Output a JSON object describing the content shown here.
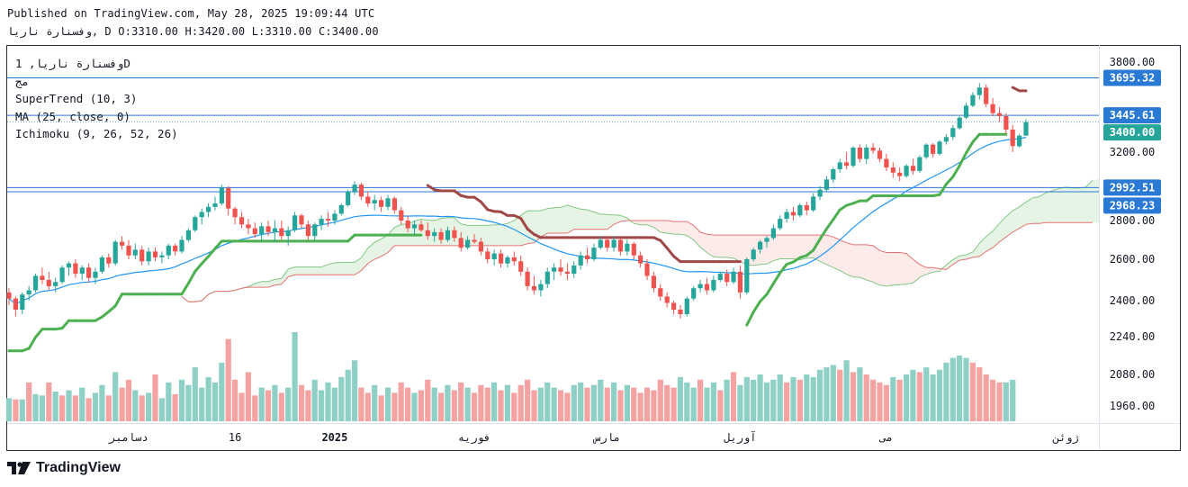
{
  "header": {
    "published": "Published on TradingView.com, May 28, 2025 19:09:44 UTC",
    "ohlc": "وفسنارة ناريا, D O:3310.00 H:3420.00 L:3310.00 C:3400.00"
  },
  "legend": {
    "symbol_line": "وفسنارة ناريا, 1D",
    "sub_line": "مج",
    "indicator_supertrend": "SuperTrend (10, 3)",
    "indicator_ma": "MA (25, close, 0)",
    "indicator_ichimoku": "Ichimoku (9, 26, 52, 26)"
  },
  "brand": {
    "name": "TradingView"
  },
  "colors": {
    "up": "#26a69a",
    "down": "#ef5350",
    "vol_up": "#8fd0c6",
    "vol_down": "#f4a3a2",
    "supertrend_up": "#4caf50",
    "supertrend_down": "#a04848",
    "ma": "#2196f3",
    "cloud_bull": "#a5d6a7",
    "cloud_bear": "#f7b6b4",
    "hline": "#2a7ad5"
  },
  "chart_data": {
    "type": "candlestick",
    "title": "",
    "ylim": [
      1900,
      3860
    ],
    "y_ticks": [
      3800,
      3600,
      3400,
      3200,
      3000,
      2800,
      2600,
      2400,
      2240,
      2080,
      1960
    ],
    "y_tick_labels": [
      "3800.00",
      "3200.00",
      "2800.00",
      "2600.00",
      "2400.00",
      "2240.00",
      "2080.00",
      "1960.00"
    ],
    "x_labels": [
      "دسامبر",
      "16",
      "2025",
      "فوریه",
      "مارس",
      "آوریل",
      "می",
      "ژوئن"
    ],
    "x_label_index": [
      18,
      34,
      49,
      70,
      90,
      110,
      132,
      159
    ],
    "price_tags": [
      {
        "value": 3695.32,
        "label": "3695.32",
        "style": "line"
      },
      {
        "value": 3445.61,
        "label": "3445.61",
        "style": "line"
      },
      {
        "value": 3400.0,
        "label": "3400.00",
        "style": "current"
      },
      {
        "value": 2992.51,
        "label": "2992.51",
        "style": "line"
      },
      {
        "value": 2968.23,
        "label": "2968.23",
        "style": "line"
      }
    ],
    "ohlc": [
      [
        2440,
        2460,
        2380,
        2410
      ],
      [
        2410,
        2420,
        2330,
        2360
      ],
      [
        2360,
        2440,
        2340,
        2430
      ],
      [
        2430,
        2470,
        2400,
        2450
      ],
      [
        2450,
        2530,
        2440,
        2520
      ],
      [
        2520,
        2560,
        2480,
        2500
      ],
      [
        2500,
        2540,
        2450,
        2470
      ],
      [
        2470,
        2510,
        2440,
        2490
      ],
      [
        2490,
        2570,
        2480,
        2560
      ],
      [
        2560,
        2590,
        2520,
        2580
      ],
      [
        2580,
        2600,
        2510,
        2530
      ],
      [
        2530,
        2570,
        2500,
        2560
      ],
      [
        2560,
        2580,
        2490,
        2510
      ],
      [
        2510,
        2560,
        2480,
        2540
      ],
      [
        2540,
        2620,
        2530,
        2610
      ],
      [
        2610,
        2630,
        2560,
        2580
      ],
      [
        2580,
        2700,
        2570,
        2690
      ],
      [
        2690,
        2720,
        2650,
        2670
      ],
      [
        2670,
        2700,
        2600,
        2620
      ],
      [
        2620,
        2680,
        2600,
        2650
      ],
      [
        2650,
        2670,
        2570,
        2590
      ],
      [
        2590,
        2660,
        2570,
        2640
      ],
      [
        2640,
        2660,
        2590,
        2610
      ],
      [
        2610,
        2640,
        2580,
        2620
      ],
      [
        2620,
        2680,
        2600,
        2670
      ],
      [
        2670,
        2680,
        2620,
        2640
      ],
      [
        2640,
        2720,
        2630,
        2700
      ],
      [
        2700,
        2760,
        2690,
        2750
      ],
      [
        2750,
        2830,
        2740,
        2820
      ],
      [
        2820,
        2870,
        2780,
        2850
      ],
      [
        2850,
        2900,
        2820,
        2880
      ],
      [
        2880,
        2940,
        2860,
        2900
      ],
      [
        2900,
        3010,
        2890,
        2990
      ],
      [
        2990,
        3000,
        2830,
        2870
      ],
      [
        2870,
        2880,
        2780,
        2820
      ],
      [
        2820,
        2850,
        2760,
        2780
      ],
      [
        2780,
        2810,
        2730,
        2760
      ],
      [
        2760,
        2790,
        2710,
        2730
      ],
      [
        2730,
        2790,
        2700,
        2770
      ],
      [
        2770,
        2800,
        2720,
        2740
      ],
      [
        2740,
        2800,
        2690,
        2760
      ],
      [
        2760,
        2800,
        2700,
        2720
      ],
      [
        2720,
        2770,
        2670,
        2750
      ],
      [
        2750,
        2850,
        2740,
        2830
      ],
      [
        2830,
        2840,
        2760,
        2780
      ],
      [
        2780,
        2800,
        2700,
        2720
      ],
      [
        2720,
        2790,
        2700,
        2780
      ],
      [
        2780,
        2830,
        2750,
        2810
      ],
      [
        2810,
        2850,
        2770,
        2800
      ],
      [
        2800,
        2860,
        2780,
        2840
      ],
      [
        2840,
        2900,
        2830,
        2890
      ],
      [
        2890,
        2980,
        2880,
        2970
      ],
      [
        2970,
        3030,
        2950,
        3010
      ],
      [
        3010,
        3020,
        2920,
        2940
      ],
      [
        2940,
        2970,
        2880,
        2900
      ],
      [
        2900,
        2950,
        2860,
        2920
      ],
      [
        2920,
        2940,
        2850,
        2880
      ],
      [
        2880,
        2950,
        2860,
        2930
      ],
      [
        2930,
        2940,
        2840,
        2860
      ],
      [
        2860,
        2880,
        2780,
        2800
      ],
      [
        2800,
        2830,
        2740,
        2760
      ],
      [
        2760,
        2800,
        2730,
        2780
      ],
      [
        2780,
        2800,
        2740,
        2750
      ],
      [
        2750,
        2790,
        2700,
        2720
      ],
      [
        2720,
        2760,
        2690,
        2740
      ],
      [
        2740,
        2760,
        2680,
        2700
      ],
      [
        2700,
        2770,
        2690,
        2750
      ],
      [
        2750,
        2770,
        2690,
        2710
      ],
      [
        2710,
        2740,
        2640,
        2660
      ],
      [
        2660,
        2720,
        2650,
        2700
      ],
      [
        2700,
        2730,
        2680,
        2690
      ],
      [
        2690,
        2710,
        2620,
        2640
      ],
      [
        2640,
        2660,
        2580,
        2600
      ],
      [
        2600,
        2650,
        2570,
        2630
      ],
      [
        2630,
        2650,
        2560,
        2580
      ],
      [
        2580,
        2620,
        2560,
        2610
      ],
      [
        2610,
        2640,
        2570,
        2590
      ],
      [
        2590,
        2620,
        2520,
        2540
      ],
      [
        2540,
        2560,
        2450,
        2470
      ],
      [
        2470,
        2520,
        2430,
        2450
      ],
      [
        2450,
        2500,
        2420,
        2480
      ],
      [
        2480,
        2560,
        2460,
        2540
      ],
      [
        2540,
        2580,
        2500,
        2560
      ],
      [
        2560,
        2600,
        2520,
        2540
      ],
      [
        2540,
        2580,
        2500,
        2530
      ],
      [
        2530,
        2590,
        2510,
        2570
      ],
      [
        2570,
        2640,
        2550,
        2620
      ],
      [
        2620,
        2660,
        2580,
        2600
      ],
      [
        2600,
        2680,
        2590,
        2660
      ],
      [
        2660,
        2720,
        2650,
        2700
      ],
      [
        2700,
        2720,
        2640,
        2660
      ],
      [
        2660,
        2720,
        2640,
        2700
      ],
      [
        2700,
        2710,
        2620,
        2640
      ],
      [
        2640,
        2700,
        2620,
        2680
      ],
      [
        2680,
        2690,
        2600,
        2620
      ],
      [
        2620,
        2640,
        2560,
        2580
      ],
      [
        2580,
        2600,
        2500,
        2520
      ],
      [
        2520,
        2540,
        2440,
        2460
      ],
      [
        2460,
        2480,
        2400,
        2420
      ],
      [
        2420,
        2440,
        2370,
        2390
      ],
      [
        2390,
        2400,
        2340,
        2360
      ],
      [
        2360,
        2380,
        2320,
        2340
      ],
      [
        2340,
        2420,
        2330,
        2410
      ],
      [
        2410,
        2470,
        2400,
        2460
      ],
      [
        2460,
        2500,
        2440,
        2480
      ],
      [
        2480,
        2510,
        2430,
        2450
      ],
      [
        2450,
        2520,
        2440,
        2500
      ],
      [
        2500,
        2540,
        2490,
        2530
      ],
      [
        2530,
        2550,
        2470,
        2490
      ],
      [
        2490,
        2560,
        2480,
        2540
      ],
      [
        2540,
        2570,
        2410,
        2440
      ],
      [
        2440,
        2610,
        2430,
        2600
      ],
      [
        2600,
        2660,
        2590,
        2650
      ],
      [
        2650,
        2700,
        2630,
        2690
      ],
      [
        2690,
        2720,
        2660,
        2710
      ],
      [
        2710,
        2780,
        2700,
        2760
      ],
      [
        2760,
        2830,
        2750,
        2810
      ],
      [
        2810,
        2870,
        2790,
        2850
      ],
      [
        2850,
        2880,
        2800,
        2830
      ],
      [
        2830,
        2900,
        2820,
        2890
      ],
      [
        2890,
        2910,
        2830,
        2860
      ],
      [
        2860,
        2960,
        2850,
        2940
      ],
      [
        2940,
        3000,
        2920,
        2980
      ],
      [
        2980,
        3060,
        2970,
        3040
      ],
      [
        3040,
        3110,
        3020,
        3100
      ],
      [
        3100,
        3160,
        3080,
        3140
      ],
      [
        3140,
        3200,
        3100,
        3120
      ],
      [
        3120,
        3240,
        3110,
        3230
      ],
      [
        3230,
        3250,
        3140,
        3160
      ],
      [
        3160,
        3250,
        3130,
        3230
      ],
      [
        3230,
        3260,
        3190,
        3210
      ],
      [
        3210,
        3230,
        3140,
        3160
      ],
      [
        3160,
        3190,
        3090,
        3110
      ],
      [
        3110,
        3140,
        3050,
        3080
      ],
      [
        3080,
        3110,
        3030,
        3060
      ],
      [
        3060,
        3130,
        3050,
        3120
      ],
      [
        3120,
        3160,
        3070,
        3090
      ],
      [
        3090,
        3180,
        3080,
        3170
      ],
      [
        3170,
        3260,
        3160,
        3250
      ],
      [
        3250,
        3260,
        3170,
        3190
      ],
      [
        3190,
        3280,
        3180,
        3270
      ],
      [
        3270,
        3320,
        3250,
        3300
      ],
      [
        3300,
        3380,
        3280,
        3360
      ],
      [
        3360,
        3440,
        3350,
        3430
      ],
      [
        3430,
        3530,
        3420,
        3510
      ],
      [
        3510,
        3600,
        3500,
        3580
      ],
      [
        3580,
        3660,
        3550,
        3630
      ],
      [
        3630,
        3650,
        3500,
        3520
      ],
      [
        3520,
        3560,
        3440,
        3460
      ],
      [
        3460,
        3500,
        3400,
        3440
      ],
      [
        3440,
        3460,
        3320,
        3350
      ],
      [
        3350,
        3380,
        3200,
        3240
      ],
      [
        3240,
        3320,
        3230,
        3310
      ],
      [
        3310,
        3420,
        3310,
        3400
      ]
    ],
    "volume": [
      [
        1990,
        1
      ],
      [
        1985,
        0
      ],
      [
        1985,
        1
      ],
      [
        2050,
        0
      ],
      [
        2005,
        1
      ],
      [
        2000,
        1
      ],
      [
        2050,
        0
      ],
      [
        2015,
        1
      ],
      [
        2000,
        0
      ],
      [
        2020,
        1
      ],
      [
        2000,
        0
      ],
      [
        2030,
        1
      ],
      [
        1990,
        0
      ],
      [
        2010,
        1
      ],
      [
        2040,
        1
      ],
      [
        2000,
        0
      ],
      [
        2090,
        1
      ],
      [
        2030,
        0
      ],
      [
        2060,
        0
      ],
      [
        2020,
        1
      ],
      [
        2000,
        0
      ],
      [
        2010,
        1
      ],
      [
        2080,
        0
      ],
      [
        1990,
        1
      ],
      [
        2050,
        1
      ],
      [
        2005,
        0
      ],
      [
        2060,
        1
      ],
      [
        2040,
        1
      ],
      [
        2110,
        1
      ],
      [
        2030,
        1
      ],
      [
        2070,
        1
      ],
      [
        2050,
        1
      ],
      [
        2130,
        1
      ],
      [
        2230,
        0
      ],
      [
        2060,
        0
      ],
      [
        2010,
        0
      ],
      [
        2090,
        0
      ],
      [
        2000,
        0
      ],
      [
        2030,
        1
      ],
      [
        2020,
        0
      ],
      [
        2040,
        1
      ],
      [
        2010,
        0
      ],
      [
        2030,
        1
      ],
      [
        2260,
        1
      ],
      [
        2040,
        0
      ],
      [
        2020,
        0
      ],
      [
        2060,
        1
      ],
      [
        2020,
        1
      ],
      [
        2050,
        1
      ],
      [
        2030,
        1
      ],
      [
        2070,
        1
      ],
      [
        2100,
        1
      ],
      [
        2140,
        1
      ],
      [
        2030,
        0
      ],
      [
        2010,
        0
      ],
      [
        2040,
        1
      ],
      [
        2000,
        0
      ],
      [
        2030,
        1
      ],
      [
        2010,
        0
      ],
      [
        2050,
        0
      ],
      [
        2030,
        0
      ],
      [
        2010,
        1
      ],
      [
        2020,
        0
      ],
      [
        2060,
        0
      ],
      [
        2030,
        1
      ],
      [
        2010,
        0
      ],
      [
        2040,
        1
      ],
      [
        2020,
        0
      ],
      [
        2050,
        0
      ],
      [
        2030,
        1
      ],
      [
        2010,
        0
      ],
      [
        2040,
        0
      ],
      [
        2030,
        0
      ],
      [
        2050,
        1
      ],
      [
        2020,
        0
      ],
      [
        2040,
        1
      ],
      [
        2010,
        0
      ],
      [
        2040,
        0
      ],
      [
        2060,
        0
      ],
      [
        2020,
        0
      ],
      [
        2030,
        1
      ],
      [
        2050,
        1
      ],
      [
        2030,
        1
      ],
      [
        2020,
        0
      ],
      [
        2010,
        0
      ],
      [
        2040,
        1
      ],
      [
        2050,
        1
      ],
      [
        2030,
        0
      ],
      [
        2040,
        1
      ],
      [
        2060,
        1
      ],
      [
        2030,
        0
      ],
      [
        2050,
        1
      ],
      [
        2020,
        0
      ],
      [
        2040,
        1
      ],
      [
        2030,
        0
      ],
      [
        2010,
        0
      ],
      [
        2030,
        0
      ],
      [
        2020,
        0
      ],
      [
        2060,
        0
      ],
      [
        2040,
        0
      ],
      [
        2030,
        0
      ],
      [
        2070,
        1
      ],
      [
        2050,
        1
      ],
      [
        2030,
        1
      ],
      [
        2060,
        0
      ],
      [
        2030,
        1
      ],
      [
        2050,
        1
      ],
      [
        2020,
        0
      ],
      [
        2060,
        1
      ],
      [
        2090,
        0
      ],
      [
        2040,
        1
      ],
      [
        2070,
        1
      ],
      [
        2060,
        1
      ],
      [
        2080,
        1
      ],
      [
        2050,
        1
      ],
      [
        2060,
        1
      ],
      [
        2080,
        1
      ],
      [
        2050,
        0
      ],
      [
        2070,
        1
      ],
      [
        2060,
        0
      ],
      [
        2080,
        1
      ],
      [
        2070,
        1
      ],
      [
        2100,
        1
      ],
      [
        2110,
        1
      ],
      [
        2120,
        1
      ],
      [
        2100,
        0
      ],
      [
        2140,
        1
      ],
      [
        2090,
        0
      ],
      [
        2110,
        1
      ],
      [
        2080,
        0
      ],
      [
        2060,
        0
      ],
      [
        2050,
        0
      ],
      [
        2040,
        0
      ],
      [
        2070,
        1
      ],
      [
        2060,
        0
      ],
      [
        2080,
        1
      ],
      [
        2100,
        1
      ],
      [
        2090,
        0
      ],
      [
        2110,
        1
      ],
      [
        2080,
        1
      ],
      [
        2100,
        1
      ],
      [
        2130,
        1
      ],
      [
        2150,
        1
      ],
      [
        2160,
        1
      ],
      [
        2150,
        1
      ],
      [
        2130,
        0
      ],
      [
        2110,
        0
      ],
      [
        2080,
        0
      ],
      [
        2060,
        0
      ],
      [
        2050,
        0
      ],
      [
        2050,
        1
      ],
      [
        2060,
        1
      ]
    ]
  }
}
